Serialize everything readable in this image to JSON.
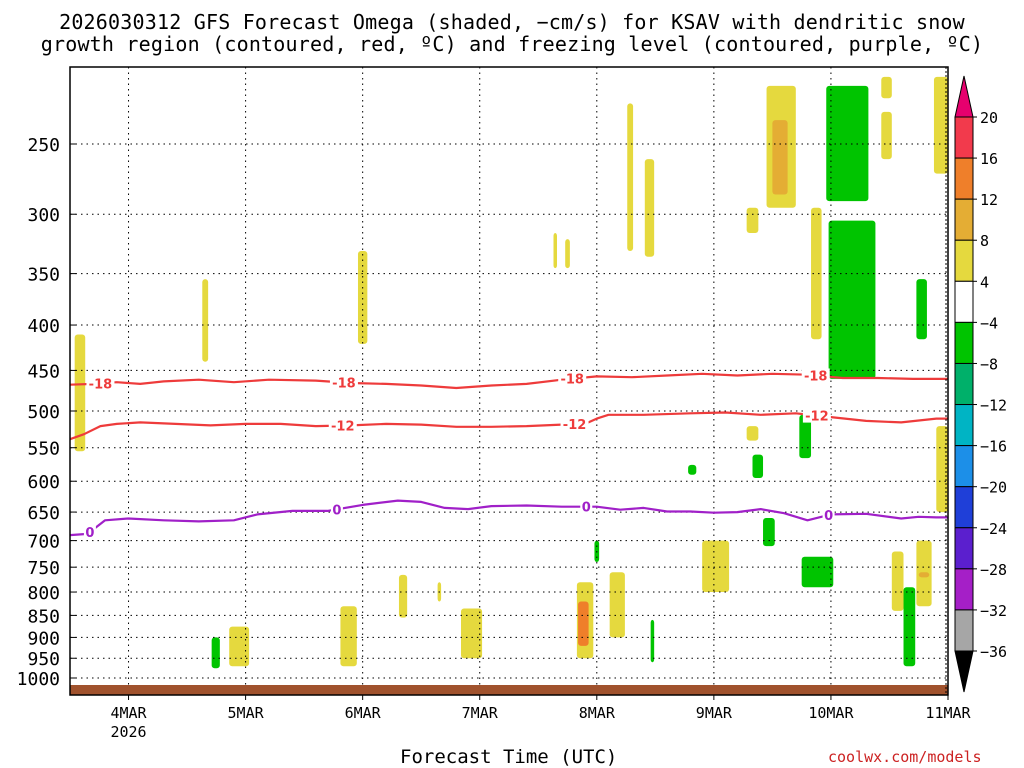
{
  "chart_data": {
    "type": "heatmap",
    "title_line1": "2026030312 GFS Forecast Omega (shaded, −cm/s) for KSAV with dendritic snow",
    "title_line2": "growth region (contoured, red, ºC) and freezing level (contoured, purple, ºC)",
    "xlabel": "Forecast Time (UTC)",
    "credit": "coolwx.com/models",
    "x_range_days": [
      3.5,
      11.0
    ],
    "x_ticks": [
      {
        "day": 4,
        "label": "4MAR",
        "sub": "2026"
      },
      {
        "day": 5,
        "label": "5MAR",
        "sub": ""
      },
      {
        "day": 6,
        "label": "6MAR",
        "sub": ""
      },
      {
        "day": 7,
        "label": "7MAR",
        "sub": ""
      },
      {
        "day": 8,
        "label": "8MAR",
        "sub": ""
      },
      {
        "day": 9,
        "label": "9MAR",
        "sub": ""
      },
      {
        "day": 10,
        "label": "10MAR",
        "sub": ""
      },
      {
        "day": 11,
        "label": "11MAR",
        "sub": ""
      }
    ],
    "y_range_hpa": [
      200,
      1020
    ],
    "y_ticks": [
      250,
      300,
      350,
      400,
      450,
      500,
      550,
      600,
      650,
      700,
      750,
      800,
      850,
      900,
      950,
      1000
    ],
    "colorbar": {
      "labels": [
        "20",
        "16",
        "12",
        "8",
        "4",
        "−4",
        "−8",
        "−12",
        "−16",
        "−20",
        "−24",
        "−28",
        "−32",
        "−36"
      ],
      "colors": [
        "#f23a4c",
        "#ef7f2a",
        "#e4ad34",
        "#e5d93e",
        "#ffffff",
        "#00c400",
        "#00b06a",
        "#00b4c4",
        "#1c8fe8",
        "#1f3fd8",
        "#5b1fce",
        "#a51fc7",
        "#a6a6a6"
      ],
      "top_arrow_color": "#e6006e",
      "bottom_arrow_color": "#000000"
    },
    "contours": [
      {
        "name": "dgz-top",
        "label": "-18",
        "color": "#ee3b3b",
        "label_days": [
          3.76,
          5.84,
          7.79,
          9.87
        ],
        "points": [
          [
            3.5,
            467
          ],
          [
            3.7,
            466
          ],
          [
            3.9,
            464
          ],
          [
            4.1,
            466
          ],
          [
            4.3,
            463
          ],
          [
            4.6,
            461
          ],
          [
            4.9,
            464
          ],
          [
            5.2,
            461
          ],
          [
            5.6,
            462
          ],
          [
            5.9,
            465
          ],
          [
            6.2,
            466
          ],
          [
            6.5,
            468
          ],
          [
            6.8,
            471
          ],
          [
            7.1,
            468
          ],
          [
            7.4,
            466
          ],
          [
            7.7,
            461
          ],
          [
            8.0,
            457
          ],
          [
            8.3,
            458
          ],
          [
            8.6,
            456
          ],
          [
            8.9,
            454
          ],
          [
            9.2,
            456
          ],
          [
            9.5,
            454
          ],
          [
            9.8,
            455
          ],
          [
            10.1,
            459
          ],
          [
            10.4,
            459
          ],
          [
            10.7,
            460
          ],
          [
            11.0,
            460
          ]
        ]
      },
      {
        "name": "dgz-bottom",
        "label": "-12",
        "color": "#ee3b3b",
        "label_days": [
          5.83,
          7.81,
          9.88
        ],
        "points": [
          [
            3.5,
            538
          ],
          [
            3.62,
            531
          ],
          [
            3.76,
            520
          ],
          [
            3.9,
            517
          ],
          [
            4.1,
            515
          ],
          [
            4.4,
            517
          ],
          [
            4.7,
            519
          ],
          [
            5.0,
            517
          ],
          [
            5.3,
            517
          ],
          [
            5.6,
            520
          ],
          [
            5.9,
            519
          ],
          [
            6.2,
            517
          ],
          [
            6.5,
            518
          ],
          [
            6.8,
            521
          ],
          [
            7.1,
            521
          ],
          [
            7.4,
            520
          ],
          [
            7.7,
            518
          ],
          [
            7.9,
            517
          ],
          [
            8.0,
            510
          ],
          [
            8.1,
            505
          ],
          [
            8.4,
            505
          ],
          [
            8.8,
            503
          ],
          [
            9.1,
            502
          ],
          [
            9.4,
            505
          ],
          [
            9.7,
            503
          ],
          [
            10.0,
            508
          ],
          [
            10.3,
            513
          ],
          [
            10.6,
            515
          ],
          [
            10.9,
            510
          ],
          [
            11.0,
            510
          ]
        ]
      },
      {
        "name": "freezing-level",
        "label": "0",
        "color": "#a020c8",
        "label_days": [
          3.67,
          5.78,
          7.91,
          9.98
        ],
        "points": [
          [
            3.5,
            690
          ],
          [
            3.65,
            688
          ],
          [
            3.8,
            664
          ],
          [
            4.0,
            661
          ],
          [
            4.3,
            664
          ],
          [
            4.6,
            666
          ],
          [
            4.9,
            664
          ],
          [
            5.1,
            654
          ],
          [
            5.4,
            648
          ],
          [
            5.7,
            648
          ],
          [
            6.0,
            638
          ],
          [
            6.3,
            631
          ],
          [
            6.5,
            633
          ],
          [
            6.7,
            643
          ],
          [
            6.9,
            645
          ],
          [
            7.1,
            640
          ],
          [
            7.4,
            639
          ],
          [
            7.7,
            641
          ],
          [
            8.0,
            641
          ],
          [
            8.2,
            646
          ],
          [
            8.4,
            643
          ],
          [
            8.6,
            649
          ],
          [
            8.8,
            649
          ],
          [
            9.0,
            651
          ],
          [
            9.2,
            650
          ],
          [
            9.4,
            645
          ],
          [
            9.6,
            652
          ],
          [
            9.8,
            664
          ],
          [
            10.0,
            654
          ],
          [
            10.3,
            653
          ],
          [
            10.6,
            661
          ],
          [
            10.75,
            658
          ],
          [
            10.9,
            659
          ],
          [
            11.0,
            659
          ]
        ]
      }
    ],
    "omega_regions": [
      {
        "level": "4-8",
        "day_start": 3.54,
        "day_end": 3.63,
        "p_top": 410,
        "p_bottom": 555
      },
      {
        "level": "4-8",
        "day_start": 4.63,
        "day_end": 4.68,
        "p_top": 355,
        "p_bottom": 440
      },
      {
        "level": "4-8",
        "day_start": 4.86,
        "day_end": 5.03,
        "p_top": 875,
        "p_bottom": 970
      },
      {
        "level": "-4--8",
        "day_start": 4.71,
        "day_end": 4.78,
        "p_top": 900,
        "p_bottom": 975
      },
      {
        "level": "4-8",
        "day_start": 5.81,
        "day_end": 5.95,
        "p_top": 830,
        "p_bottom": 970
      },
      {
        "level": "4-8",
        "day_start": 5.96,
        "day_end": 6.04,
        "p_top": 330,
        "p_bottom": 420
      },
      {
        "level": "4-8",
        "day_start": 6.31,
        "day_end": 6.38,
        "p_top": 765,
        "p_bottom": 855
      },
      {
        "level": "4-8",
        "day_start": 6.64,
        "day_end": 6.67,
        "p_top": 780,
        "p_bottom": 820
      },
      {
        "level": "4-8",
        "day_start": 6.84,
        "day_end": 7.02,
        "p_top": 835,
        "p_bottom": 950
      },
      {
        "level": "4-8",
        "day_start": 7.63,
        "day_end": 7.66,
        "p_top": 315,
        "p_bottom": 345
      },
      {
        "level": "4-8",
        "day_start": 7.73,
        "day_end": 7.77,
        "p_top": 320,
        "p_bottom": 345
      },
      {
        "level": "4-8",
        "day_start": 7.83,
        "day_end": 7.97,
        "p_top": 780,
        "p_bottom": 950
      },
      {
        "level": "12-16",
        "day_start": 7.84,
        "day_end": 7.93,
        "p_top": 820,
        "p_bottom": 920
      },
      {
        "level": "4-8",
        "day_start": 8.11,
        "day_end": 8.24,
        "p_top": 760,
        "p_bottom": 900
      },
      {
        "level": "4-8",
        "day_start": 8.26,
        "day_end": 8.31,
        "p_top": 225,
        "p_bottom": 330
      },
      {
        "level": "4-8",
        "day_start": 8.41,
        "day_end": 8.49,
        "p_top": 260,
        "p_bottom": 335
      },
      {
        "level": "-4--8",
        "day_start": 8.46,
        "day_end": 8.49,
        "p_top": 860,
        "p_bottom": 960
      },
      {
        "level": "-4--8",
        "day_start": 7.98,
        "day_end": 8.02,
        "p_top": 700,
        "p_bottom": 740
      },
      {
        "level": "-4--8",
        "day_start": 8.78,
        "day_end": 8.85,
        "p_top": 575,
        "p_bottom": 590
      },
      {
        "level": "4-8",
        "day_start": 8.9,
        "day_end": 9.13,
        "p_top": 700,
        "p_bottom": 800
      },
      {
        "level": "4-8",
        "day_start": 9.45,
        "day_end": 9.7,
        "p_top": 215,
        "p_bottom": 295
      },
      {
        "level": "8-12",
        "day_start": 9.5,
        "day_end": 9.63,
        "p_top": 235,
        "p_bottom": 285
      },
      {
        "level": "4-8",
        "day_start": 9.28,
        "day_end": 9.38,
        "p_top": 295,
        "p_bottom": 315
      },
      {
        "level": "4-8",
        "day_start": 9.28,
        "day_end": 9.38,
        "p_top": 520,
        "p_bottom": 540
      },
      {
        "level": "-4--8",
        "day_start": 9.33,
        "day_end": 9.42,
        "p_top": 560,
        "p_bottom": 595
      },
      {
        "level": "-4--8",
        "day_start": 9.42,
        "day_end": 9.52,
        "p_top": 660,
        "p_bottom": 710
      },
      {
        "level": "4-8",
        "day_start": 9.83,
        "day_end": 9.92,
        "p_top": 295,
        "p_bottom": 415
      },
      {
        "level": "-4--8",
        "day_start": 9.73,
        "day_end": 9.83,
        "p_top": 505,
        "p_bottom": 565
      },
      {
        "level": "-4--8",
        "day_start": 9.75,
        "day_end": 10.02,
        "p_top": 730,
        "p_bottom": 790
      },
      {
        "level": "-4--8",
        "day_start": 9.96,
        "day_end": 10.32,
        "p_top": 215,
        "p_bottom": 290
      },
      {
        "level": "-4--8",
        "day_start": 9.98,
        "day_end": 10.38,
        "p_top": 305,
        "p_bottom": 460
      },
      {
        "level": "-4--8",
        "day_start": 10.62,
        "day_end": 10.72,
        "p_top": 790,
        "p_bottom": 970
      },
      {
        "level": "4-8",
        "day_start": 10.52,
        "day_end": 10.62,
        "p_top": 720,
        "p_bottom": 840
      },
      {
        "level": "4-8",
        "day_start": 10.43,
        "day_end": 10.52,
        "p_top": 210,
        "p_bottom": 222
      },
      {
        "level": "4-8",
        "day_start": 10.43,
        "day_end": 10.52,
        "p_top": 230,
        "p_bottom": 260
      },
      {
        "level": "-4--8",
        "day_start": 10.73,
        "day_end": 10.82,
        "p_top": 355,
        "p_bottom": 415
      },
      {
        "level": "4-8",
        "day_start": 10.73,
        "day_end": 10.86,
        "p_top": 700,
        "p_bottom": 830
      },
      {
        "level": "8-12",
        "day_start": 10.75,
        "day_end": 10.84,
        "p_top": 760,
        "p_bottom": 770
      },
      {
        "level": "4-8",
        "day_start": 10.88,
        "day_end": 11.0,
        "p_top": 210,
        "p_bottom": 270
      },
      {
        "level": "4-8",
        "day_start": 10.9,
        "day_end": 11.0,
        "p_top": 520,
        "p_bottom": 650
      }
    ]
  }
}
